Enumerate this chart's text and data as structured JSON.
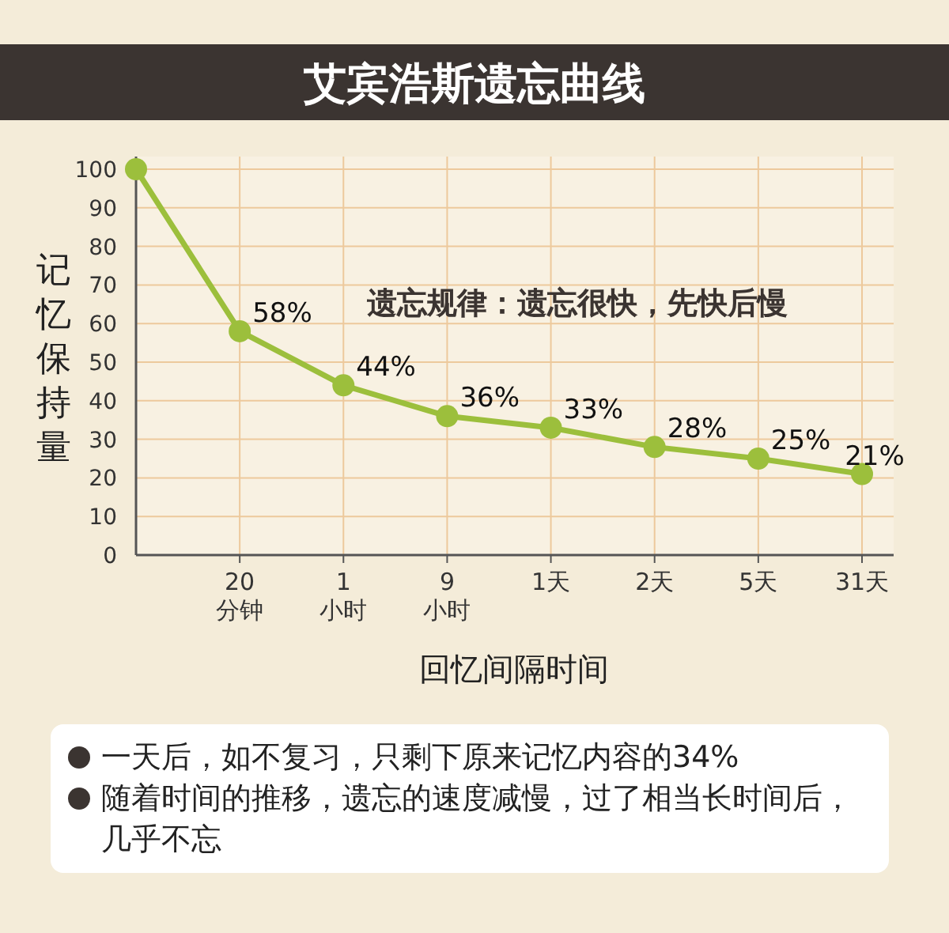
{
  "chart_data": {
    "type": "line",
    "title": "艾宾浩斯遗忘曲线",
    "ylabel": "记忆保持量",
    "xlabel": "回忆间隔时间",
    "categories": [
      null,
      "20\n分钟",
      "1\n小时",
      "9\n小时",
      "1天",
      "2天",
      "5天",
      "31天"
    ],
    "series": [
      {
        "color": "#9cbf3c",
        "values": [
          100,
          58,
          44,
          36,
          33,
          28,
          25,
          21
        ],
        "value_labels": [
          null,
          "58%",
          "44%",
          "36%",
          "33%",
          "28%",
          "25%",
          "21%"
        ]
      }
    ],
    "ylim": [
      0,
      100
    ],
    "yticks": [
      0,
      10,
      20,
      30,
      40,
      50,
      60,
      70,
      80,
      90,
      100
    ],
    "grid": true,
    "marker": "circle",
    "line_style": "solid",
    "annotations": [
      "遗忘规律：遗忘很快，先快后慢",
      "一天后，如不复习，只剩下原来记忆内容的34%",
      "随着时间的推移，遗忘的速度减慢，过了相当长时间后，几乎不忘"
    ]
  }
}
